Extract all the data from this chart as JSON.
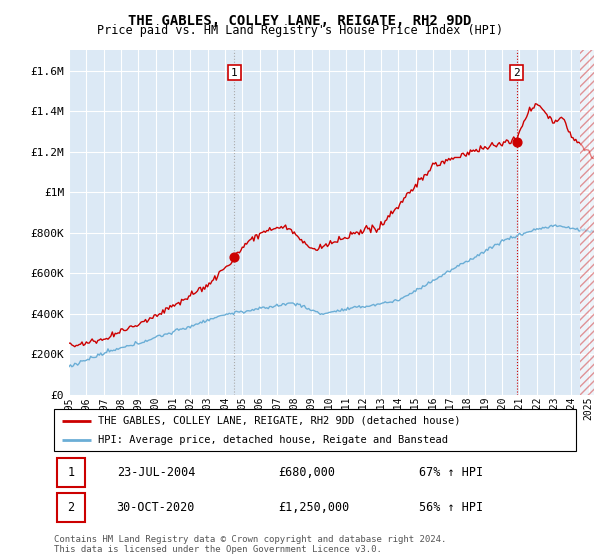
{
  "title": "THE GABLES, COLLEY LANE, REIGATE, RH2 9DD",
  "subtitle": "Price paid vs. HM Land Registry's House Price Index (HPI)",
  "background_color": "#dce9f5",
  "sale1_date": "23-JUL-2004",
  "sale1_price": 680000,
  "sale1_hpi_pct": "67% ↑ HPI",
  "sale2_date": "30-OCT-2020",
  "sale2_price": 1250000,
  "sale2_hpi_pct": "56% ↑ HPI",
  "legend_line1": "THE GABLES, COLLEY LANE, REIGATE, RH2 9DD (detached house)",
  "legend_line2": "HPI: Average price, detached house, Reigate and Banstead",
  "footer1": "Contains HM Land Registry data © Crown copyright and database right 2024.",
  "footer2": "This data is licensed under the Open Government Licence v3.0.",
  "ylim": [
    0,
    1700000
  ],
  "yticks": [
    0,
    200000,
    400000,
    600000,
    800000,
    1000000,
    1200000,
    1400000,
    1600000
  ],
  "ytick_labels": [
    "£0",
    "£200K",
    "£400K",
    "£600K",
    "£800K",
    "£1M",
    "£1.2M",
    "£1.4M",
    "£1.6M"
  ],
  "hpi_color": "#6baed6",
  "price_color": "#cc0000",
  "sale1_x": 2004.55,
  "sale2_x": 2020.83,
  "xmin": 1995,
  "xmax": 2025.3
}
